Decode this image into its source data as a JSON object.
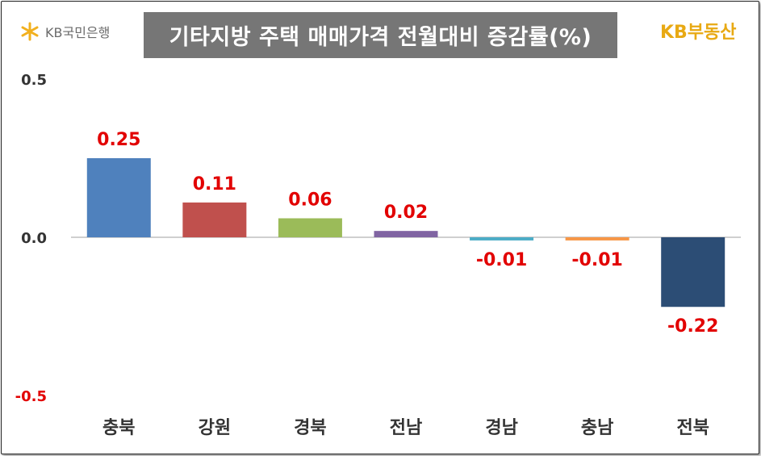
{
  "header": {
    "bank_logo_text": "KB국민은행",
    "title": "기타지방 주택 매매가격 전월대비 증감률(%)",
    "realty_logo_text": "KB부동산"
  },
  "colors": {
    "title_bg": "#767676",
    "data_label": "#e20000",
    "brand_gold": "#e8a913"
  },
  "chart_data": {
    "type": "bar",
    "title": "기타지방 주택 매매가격 전월대비 증감률(%)",
    "categories": [
      "충북",
      "강원",
      "경북",
      "전남",
      "경남",
      "충남",
      "전북"
    ],
    "values": [
      0.25,
      0.11,
      0.06,
      0.02,
      -0.01,
      -0.01,
      -0.22
    ],
    "data_labels": [
      "0.25",
      "0.11",
      "0.06",
      "0.02",
      "-0.01",
      "-0.01",
      "-0.22"
    ],
    "bar_colors": [
      "#4f81bd",
      "#c0504d",
      "#9bbb59",
      "#8064a2",
      "#4bacc6",
      "#f79646",
      "#2c4d75"
    ],
    "ylim": [
      -0.5,
      0.5
    ],
    "y_ticks": [
      "0.5",
      "0.0",
      "-0.5"
    ],
    "xlabel": "",
    "ylabel": "",
    "grid": false,
    "legend": "none"
  }
}
